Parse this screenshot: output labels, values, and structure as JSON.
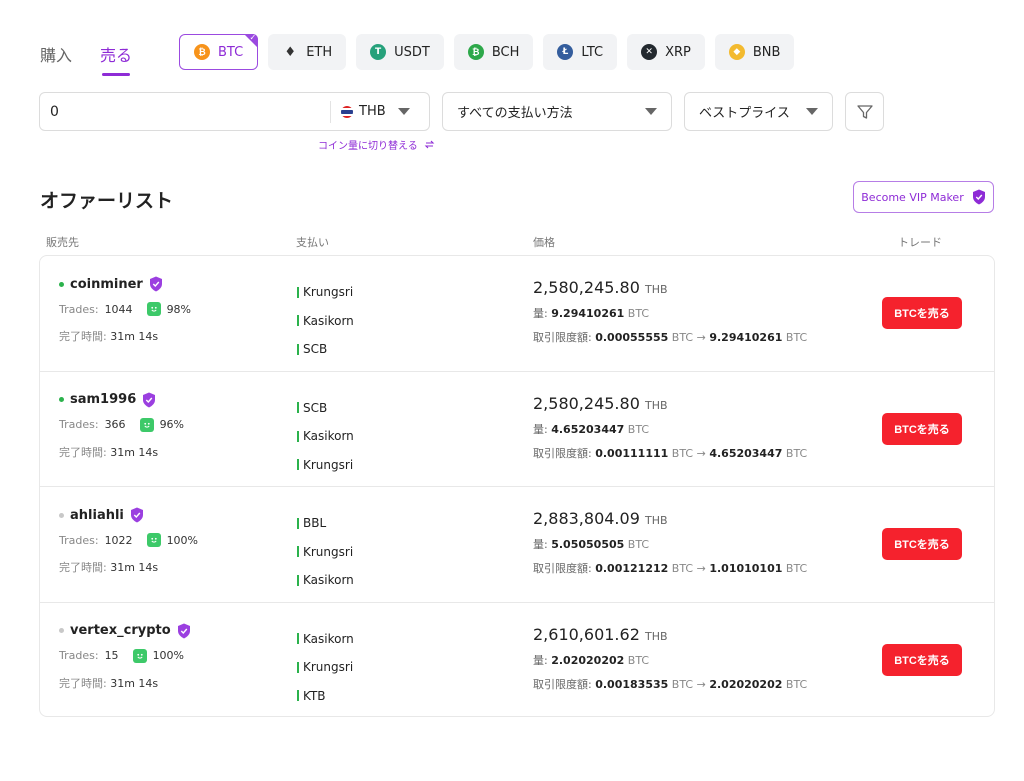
{
  "mode_tabs": [
    {
      "label": "購入",
      "active": false
    },
    {
      "label": "売る",
      "active": true
    }
  ],
  "coins": [
    {
      "label": "BTC",
      "icon": "bitcoin-icon",
      "color": "#f7931a",
      "active": true
    },
    {
      "label": "ETH",
      "icon": "ethereum-icon",
      "color": "#333333",
      "active": false
    },
    {
      "label": "USDT",
      "icon": "tether-icon",
      "color": "#26a17b",
      "active": false
    },
    {
      "label": "BCH",
      "icon": "bitcoin-cash-icon",
      "color": "#2da84a",
      "active": false
    },
    {
      "label": "LTC",
      "icon": "litecoin-icon",
      "color": "#345d9d",
      "active": false
    },
    {
      "label": "XRP",
      "icon": "xrp-icon",
      "color": "#23292f",
      "active": false
    },
    {
      "label": "BNB",
      "icon": "bnb-icon",
      "color": "#f3ba2f",
      "active": false
    }
  ],
  "filters": {
    "amount_value": "0",
    "currency": "THB",
    "payment_method": "すべての支払い方法",
    "sort": "ベストプライス",
    "switch_link": "コイン量に切り替える"
  },
  "section_title": "オファーリスト",
  "vip_button": "Become VIP Maker",
  "headers": {
    "seller": "販売先",
    "payment": "支払い",
    "price": "価格",
    "trade": "トレード"
  },
  "labels": {
    "trades": "Trades:",
    "completion": "完了時間:",
    "amount": "量:",
    "limit": "取引限度額:",
    "fiat_unit": "THB",
    "coin_unit": "BTC",
    "arrow": "→"
  },
  "offers": [
    {
      "name": "coinminer",
      "online": true,
      "trades": "1044",
      "rating": "98%",
      "completion": "31m 14s",
      "payments": [
        "Krungsri",
        "Kasikorn",
        "SCB"
      ],
      "price": "2,580,245.80",
      "amount": "9.29410261",
      "limit_min": "0.00055555",
      "limit_max": "9.29410261",
      "button": "BTCを売る"
    },
    {
      "name": "sam1996",
      "online": true,
      "trades": "366",
      "rating": "96%",
      "completion": "31m 14s",
      "payments": [
        "SCB",
        "Kasikorn",
        "Krungsri"
      ],
      "price": "2,580,245.80",
      "amount": "4.65203447",
      "limit_min": "0.00111111",
      "limit_max": "4.65203447",
      "button": "BTCを売る"
    },
    {
      "name": "ahliahli",
      "online": false,
      "trades": "1022",
      "rating": "100%",
      "completion": "31m 14s",
      "payments": [
        "BBL",
        "Krungsri",
        "Kasikorn"
      ],
      "price": "2,883,804.09",
      "amount": "5.05050505",
      "limit_min": "0.00121212",
      "limit_max": "1.01010101",
      "button": "BTCを売る"
    },
    {
      "name": "vertex_crypto",
      "online": false,
      "trades": "15",
      "rating": "100%",
      "completion": "31m 14s",
      "payments": [
        "Kasikorn",
        "Krungsri",
        "KTB"
      ],
      "price": "2,610,601.62",
      "amount": "2.02020202",
      "limit_min": "0.00183535",
      "limit_max": "2.02020202",
      "button": "BTCを売る"
    }
  ],
  "colors": {
    "accent": "#8e2bd6",
    "sell": "#f5222d",
    "online": "#2bb24c",
    "offline": "#c8c8c8"
  }
}
